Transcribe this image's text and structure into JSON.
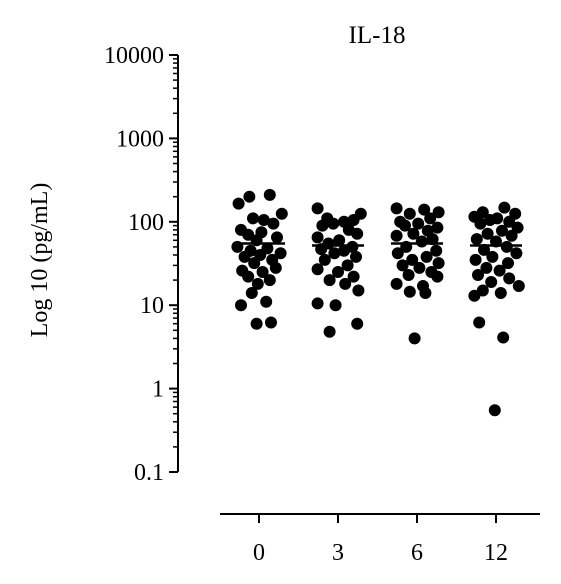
{
  "chart_data": {
    "type": "scatter",
    "title": "IL-18",
    "ylabel": "Log 10 (pg/mL)",
    "xlabel": "",
    "yscale": "log",
    "ylim": [
      0.1,
      10000
    ],
    "y_ticks": [
      {
        "value": 0.1,
        "label": "0.1"
      },
      {
        "value": 1,
        "label": "1"
      },
      {
        "value": 10,
        "label": "10"
      },
      {
        "value": 100,
        "label": "100"
      },
      {
        "value": 1000,
        "label": "1000"
      },
      {
        "value": 10000,
        "label": "10000"
      }
    ],
    "categories": [
      "0",
      "3",
      "6",
      "12"
    ],
    "grid": false,
    "marker_color": "#000000",
    "series": [
      {
        "category": "0",
        "mean": 55,
        "points": [
          {
            "y": 210,
            "dx": 0.45
          },
          {
            "y": 200,
            "dx": -0.4
          },
          {
            "y": 165,
            "dx": -0.85
          },
          {
            "y": 125,
            "dx": 0.95
          },
          {
            "y": 110,
            "dx": -0.25
          },
          {
            "y": 105,
            "dx": 0.2
          },
          {
            "y": 95,
            "dx": 0.6
          },
          {
            "y": 80,
            "dx": -0.75
          },
          {
            "y": 75,
            "dx": 0.1
          },
          {
            "y": 70,
            "dx": -0.45
          },
          {
            "y": 65,
            "dx": 0.75
          },
          {
            "y": 60,
            "dx": -0.1
          },
          {
            "y": 50,
            "dx": -0.9
          },
          {
            "y": 48,
            "dx": 0.35
          },
          {
            "y": 45,
            "dx": -0.35
          },
          {
            "y": 42,
            "dx": 0.9
          },
          {
            "y": 40,
            "dx": 0.05
          },
          {
            "y": 38,
            "dx": -0.6
          },
          {
            "y": 35,
            "dx": 0.55
          },
          {
            "y": 32,
            "dx": -0.2
          },
          {
            "y": 28,
            "dx": 0.7
          },
          {
            "y": 26,
            "dx": -0.7
          },
          {
            "y": 25,
            "dx": 0.15
          },
          {
            "y": 22,
            "dx": -0.45
          },
          {
            "y": 20,
            "dx": 0.45
          },
          {
            "y": 18,
            "dx": -0.05
          },
          {
            "y": 14,
            "dx": -0.3
          },
          {
            "y": 11,
            "dx": 0.3
          },
          {
            "y": 10,
            "dx": -0.75
          },
          {
            "y": 6.2,
            "dx": 0.5
          },
          {
            "y": 6.0,
            "dx": -0.1
          }
        ]
      },
      {
        "category": "3",
        "mean": 52,
        "points": [
          {
            "y": 145,
            "dx": -0.85
          },
          {
            "y": 125,
            "dx": 0.95
          },
          {
            "y": 110,
            "dx": -0.45
          },
          {
            "y": 105,
            "dx": 0.65
          },
          {
            "y": 100,
            "dx": 0.25
          },
          {
            "y": 95,
            "dx": -0.2
          },
          {
            "y": 90,
            "dx": -0.65
          },
          {
            "y": 80,
            "dx": 0.45
          },
          {
            "y": 72,
            "dx": 0.8
          },
          {
            "y": 65,
            "dx": -0.85
          },
          {
            "y": 60,
            "dx": 0.05
          },
          {
            "y": 55,
            "dx": -0.4
          },
          {
            "y": 50,
            "dx": 0.6
          },
          {
            "y": 47,
            "dx": -0.7
          },
          {
            "y": 45,
            "dx": 0.25
          },
          {
            "y": 42,
            "dx": -0.15
          },
          {
            "y": 38,
            "dx": 0.75
          },
          {
            "y": 35,
            "dx": -0.55
          },
          {
            "y": 30,
            "dx": 0.4
          },
          {
            "y": 27,
            "dx": -0.85
          },
          {
            "y": 25,
            "dx": 0.0
          },
          {
            "y": 22,
            "dx": 0.65
          },
          {
            "y": 20,
            "dx": -0.35
          },
          {
            "y": 18,
            "dx": 0.3
          },
          {
            "y": 15,
            "dx": 0.85
          },
          {
            "y": 10.5,
            "dx": -0.85
          },
          {
            "y": 10,
            "dx": -0.1
          },
          {
            "y": 6.0,
            "dx": 0.8
          },
          {
            "y": 4.8,
            "dx": -0.35
          }
        ]
      },
      {
        "category": "6",
        "mean": 55,
        "points": [
          {
            "y": 145,
            "dx": -0.85
          },
          {
            "y": 140,
            "dx": 0.3
          },
          {
            "y": 130,
            "dx": 0.9
          },
          {
            "y": 125,
            "dx": -0.3
          },
          {
            "y": 110,
            "dx": 0.55
          },
          {
            "y": 100,
            "dx": -0.7
          },
          {
            "y": 95,
            "dx": 0.05
          },
          {
            "y": 90,
            "dx": -0.5
          },
          {
            "y": 85,
            "dx": 0.85
          },
          {
            "y": 78,
            "dx": 0.45
          },
          {
            "y": 72,
            "dx": -0.15
          },
          {
            "y": 68,
            "dx": -0.85
          },
          {
            "y": 62,
            "dx": 0.65
          },
          {
            "y": 58,
            "dx": 0.2
          },
          {
            "y": 50,
            "dx": -0.45
          },
          {
            "y": 45,
            "dx": 0.8
          },
          {
            "y": 42,
            "dx": -0.8
          },
          {
            "y": 38,
            "dx": 0.4
          },
          {
            "y": 35,
            "dx": -0.2
          },
          {
            "y": 32,
            "dx": 0.9
          },
          {
            "y": 30,
            "dx": -0.6
          },
          {
            "y": 28,
            "dx": 0.1
          },
          {
            "y": 25,
            "dx": 0.6
          },
          {
            "y": 23,
            "dx": -0.35
          },
          {
            "y": 22,
            "dx": 0.85
          },
          {
            "y": 18,
            "dx": -0.85
          },
          {
            "y": 17,
            "dx": 0.25
          },
          {
            "y": 14.5,
            "dx": -0.3
          },
          {
            "y": 14,
            "dx": 0.35
          },
          {
            "y": 4.0,
            "dx": -0.1
          }
        ]
      },
      {
        "category": "12",
        "mean": 52,
        "points": [
          {
            "y": 148,
            "dx": 0.35
          },
          {
            "y": 130,
            "dx": -0.55
          },
          {
            "y": 125,
            "dx": 0.8
          },
          {
            "y": 115,
            "dx": -0.9
          },
          {
            "y": 110,
            "dx": 0.05
          },
          {
            "y": 105,
            "dx": -0.25
          },
          {
            "y": 100,
            "dx": 0.55
          },
          {
            "y": 95,
            "dx": -0.65
          },
          {
            "y": 85,
            "dx": 0.9
          },
          {
            "y": 78,
            "dx": 0.25
          },
          {
            "y": 72,
            "dx": -0.35
          },
          {
            "y": 68,
            "dx": 0.65
          },
          {
            "y": 62,
            "dx": -0.8
          },
          {
            "y": 58,
            "dx": 0.0
          },
          {
            "y": 50,
            "dx": 0.45
          },
          {
            "y": 46,
            "dx": -0.5
          },
          {
            "y": 42,
            "dx": 0.85
          },
          {
            "y": 38,
            "dx": -0.15
          },
          {
            "y": 35,
            "dx": -0.85
          },
          {
            "y": 32,
            "dx": 0.5
          },
          {
            "y": 28,
            "dx": -0.4
          },
          {
            "y": 26,
            "dx": 0.15
          },
          {
            "y": 23,
            "dx": -0.75
          },
          {
            "y": 21,
            "dx": 0.55
          },
          {
            "y": 19,
            "dx": -0.2
          },
          {
            "y": 17,
            "dx": 0.95
          },
          {
            "y": 15,
            "dx": -0.55
          },
          {
            "y": 14,
            "dx": 0.2
          },
          {
            "y": 13,
            "dx": -0.9
          },
          {
            "y": 6.2,
            "dx": -0.7
          },
          {
            "y": 4.1,
            "dx": 0.3
          },
          {
            "y": 0.55,
            "dx": -0.05
          }
        ]
      }
    ]
  }
}
